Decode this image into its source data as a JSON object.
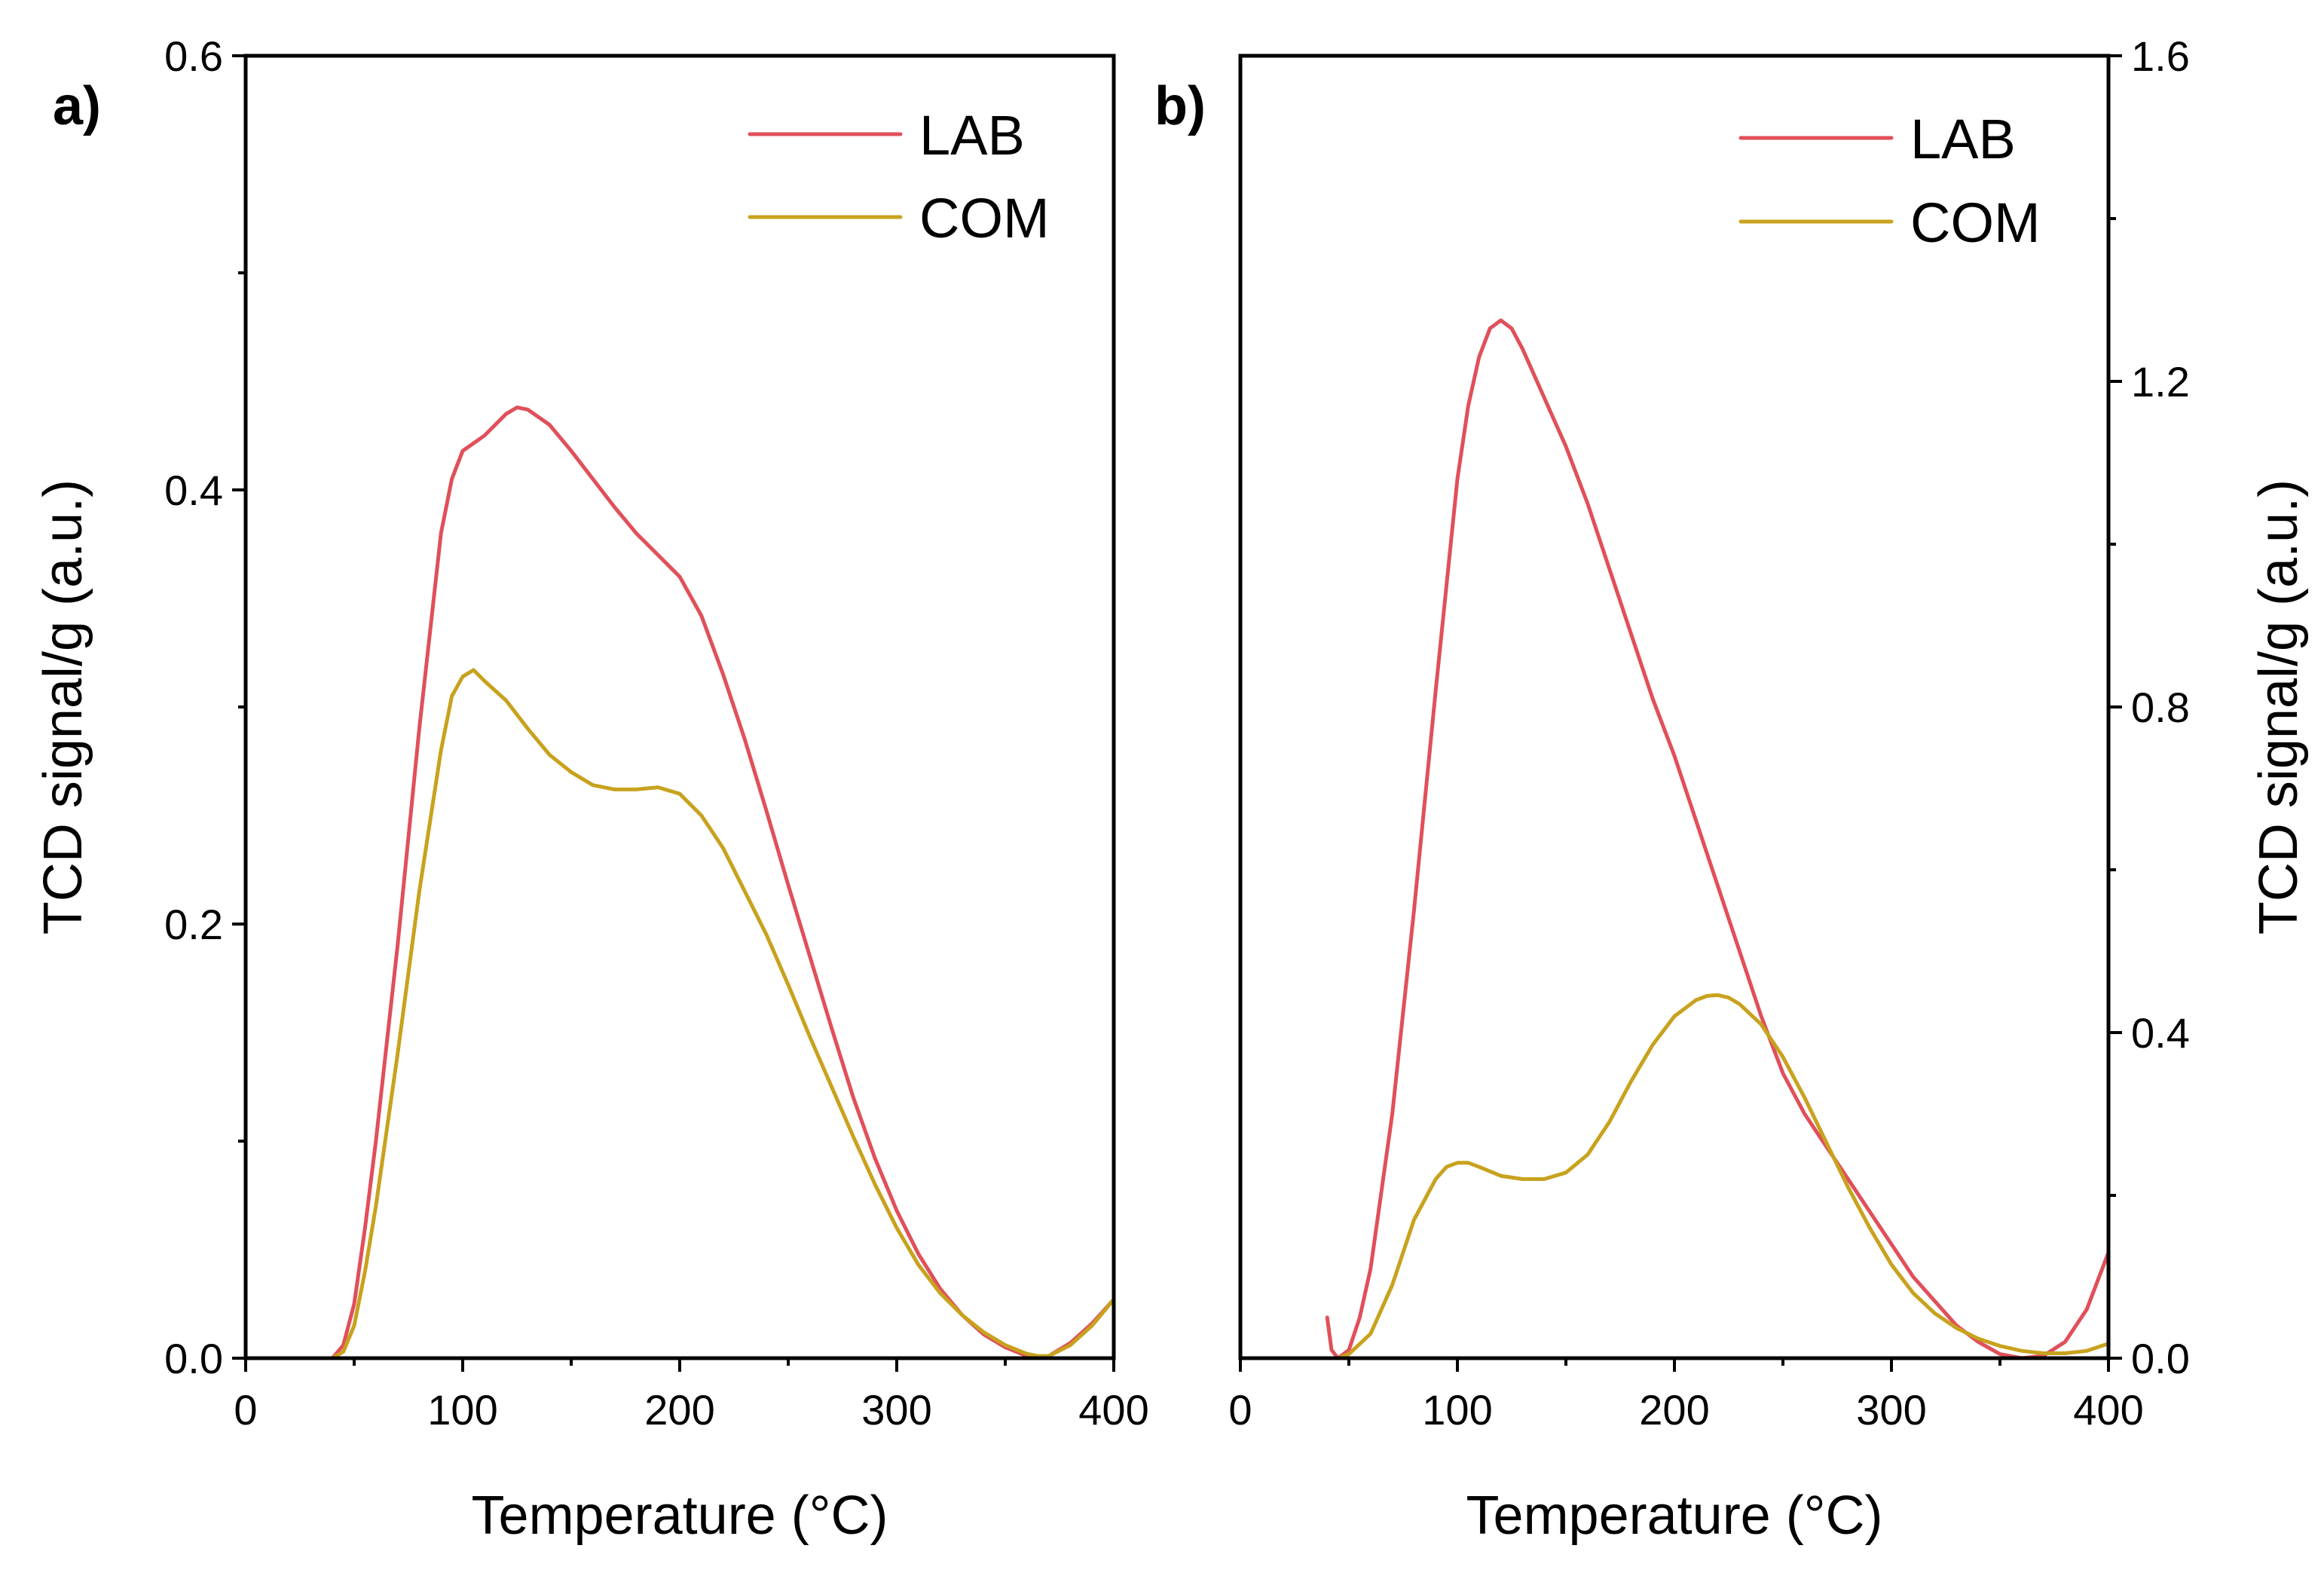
{
  "colors": {
    "lab": "#e0505a",
    "com": "#c8a21e"
  },
  "chart_data": [
    {
      "panel": "a)",
      "type": "line",
      "xlabel": "Temperature (°C)",
      "ylabel": "TCD signal/g (a.u.)",
      "yaxis_side": "left",
      "xlim": [
        0,
        400
      ],
      "ylim": [
        0,
        0.6
      ],
      "xticks": [
        "0",
        "100",
        "200",
        "300",
        "400"
      ],
      "yticks": [
        "0.0",
        "0.2",
        "0.4",
        "0.6"
      ],
      "ytick_values": [
        0,
        0.2,
        0.4,
        0.6
      ],
      "yminor": [
        0.1,
        0.3,
        0.5
      ],
      "legend": [
        "LAB",
        "COM"
      ],
      "series": [
        {
          "name": "LAB",
          "color": "#e0505a",
          "x": [
            40,
            45,
            50,
            55,
            60,
            70,
            80,
            90,
            95,
            100,
            110,
            120,
            125,
            130,
            140,
            150,
            160,
            170,
            180,
            190,
            200,
            210,
            220,
            230,
            240,
            250,
            260,
            270,
            280,
            290,
            300,
            310,
            320,
            330,
            340,
            350,
            360,
            365,
            370,
            380,
            390,
            400
          ],
          "y": [
            0,
            0.006,
            0.025,
            0.06,
            0.1,
            0.19,
            0.29,
            0.38,
            0.405,
            0.418,
            0.425,
            0.435,
            0.438,
            0.437,
            0.43,
            0.418,
            0.405,
            0.392,
            0.38,
            0.37,
            0.36,
            0.342,
            0.315,
            0.285,
            0.252,
            0.218,
            0.185,
            0.152,
            0.12,
            0.092,
            0.068,
            0.048,
            0.032,
            0.02,
            0.011,
            0.005,
            0.001,
            0,
            0.001,
            0.007,
            0.016,
            0.027
          ]
        },
        {
          "name": "COM",
          "color": "#c8a21e",
          "x": [
            40,
            45,
            50,
            55,
            60,
            70,
            80,
            90,
            95,
            100,
            105,
            110,
            120,
            130,
            140,
            150,
            160,
            170,
            180,
            190,
            200,
            210,
            220,
            230,
            240,
            250,
            260,
            270,
            280,
            290,
            300,
            310,
            320,
            330,
            340,
            350,
            360,
            365,
            370,
            380,
            390,
            400
          ],
          "y": [
            0,
            0.003,
            0.015,
            0.04,
            0.07,
            0.14,
            0.215,
            0.28,
            0.305,
            0.314,
            0.317,
            0.312,
            0.303,
            0.29,
            0.278,
            0.27,
            0.264,
            0.262,
            0.262,
            0.263,
            0.26,
            0.25,
            0.235,
            0.215,
            0.195,
            0.172,
            0.148,
            0.125,
            0.102,
            0.08,
            0.06,
            0.043,
            0.03,
            0.02,
            0.012,
            0.006,
            0.002,
            0.001,
            0.001,
            0.006,
            0.015,
            0.027
          ]
        }
      ]
    },
    {
      "panel": "b)",
      "type": "line",
      "xlabel": "Temperature (°C)",
      "ylabel": "TCD signal/g (a.u.)",
      "yaxis_side": "right",
      "xlim": [
        0,
        400
      ],
      "ylim": [
        0,
        1.6
      ],
      "xticks": [
        "0",
        "100",
        "200",
        "300",
        "400"
      ],
      "yticks": [
        "0.0",
        "0.4",
        "0.8",
        "1.2",
        "1.6"
      ],
      "ytick_values": [
        0,
        0.4,
        0.8,
        1.2,
        1.6
      ],
      "yminor": [
        0.2,
        0.6,
        1.0,
        1.4
      ],
      "legend": [
        "LAB",
        "COM"
      ],
      "series": [
        {
          "name": "LAB",
          "color": "#e0505a",
          "x": [
            40,
            42,
            45,
            50,
            55,
            60,
            70,
            80,
            90,
            95,
            100,
            105,
            110,
            115,
            120,
            125,
            130,
            140,
            150,
            160,
            170,
            180,
            190,
            200,
            210,
            220,
            230,
            240,
            250,
            260,
            270,
            280,
            290,
            300,
            310,
            320,
            330,
            340,
            350,
            360,
            370,
            380,
            390,
            400
          ],
          "y": [
            0.05,
            0.01,
            0,
            0.01,
            0.05,
            0.11,
            0.3,
            0.55,
            0.82,
            0.95,
            1.08,
            1.17,
            1.23,
            1.265,
            1.275,
            1.265,
            1.24,
            1.18,
            1.12,
            1.05,
            0.97,
            0.89,
            0.81,
            0.74,
            0.66,
            0.58,
            0.5,
            0.42,
            0.35,
            0.3,
            0.26,
            0.22,
            0.18,
            0.14,
            0.1,
            0.07,
            0.04,
            0.02,
            0.005,
            0,
            0.003,
            0.02,
            0.06,
            0.13
          ]
        },
        {
          "name": "COM",
          "color": "#c8a21e",
          "x": [
            40,
            45,
            50,
            60,
            70,
            80,
            90,
            95,
            100,
            105,
            110,
            120,
            130,
            140,
            150,
            160,
            170,
            180,
            190,
            200,
            210,
            215,
            220,
            225,
            230,
            240,
            250,
            260,
            270,
            280,
            290,
            300,
            310,
            320,
            330,
            340,
            350,
            360,
            370,
            380,
            390,
            400
          ],
          "y": [
            0,
            0,
            0.005,
            0.03,
            0.09,
            0.17,
            0.22,
            0.235,
            0.24,
            0.24,
            0.235,
            0.224,
            0.22,
            0.22,
            0.228,
            0.25,
            0.29,
            0.34,
            0.385,
            0.42,
            0.44,
            0.445,
            0.446,
            0.443,
            0.435,
            0.41,
            0.37,
            0.32,
            0.265,
            0.21,
            0.16,
            0.115,
            0.08,
            0.055,
            0.037,
            0.024,
            0.015,
            0.009,
            0.006,
            0.006,
            0.009,
            0.018
          ]
        }
      ]
    }
  ]
}
